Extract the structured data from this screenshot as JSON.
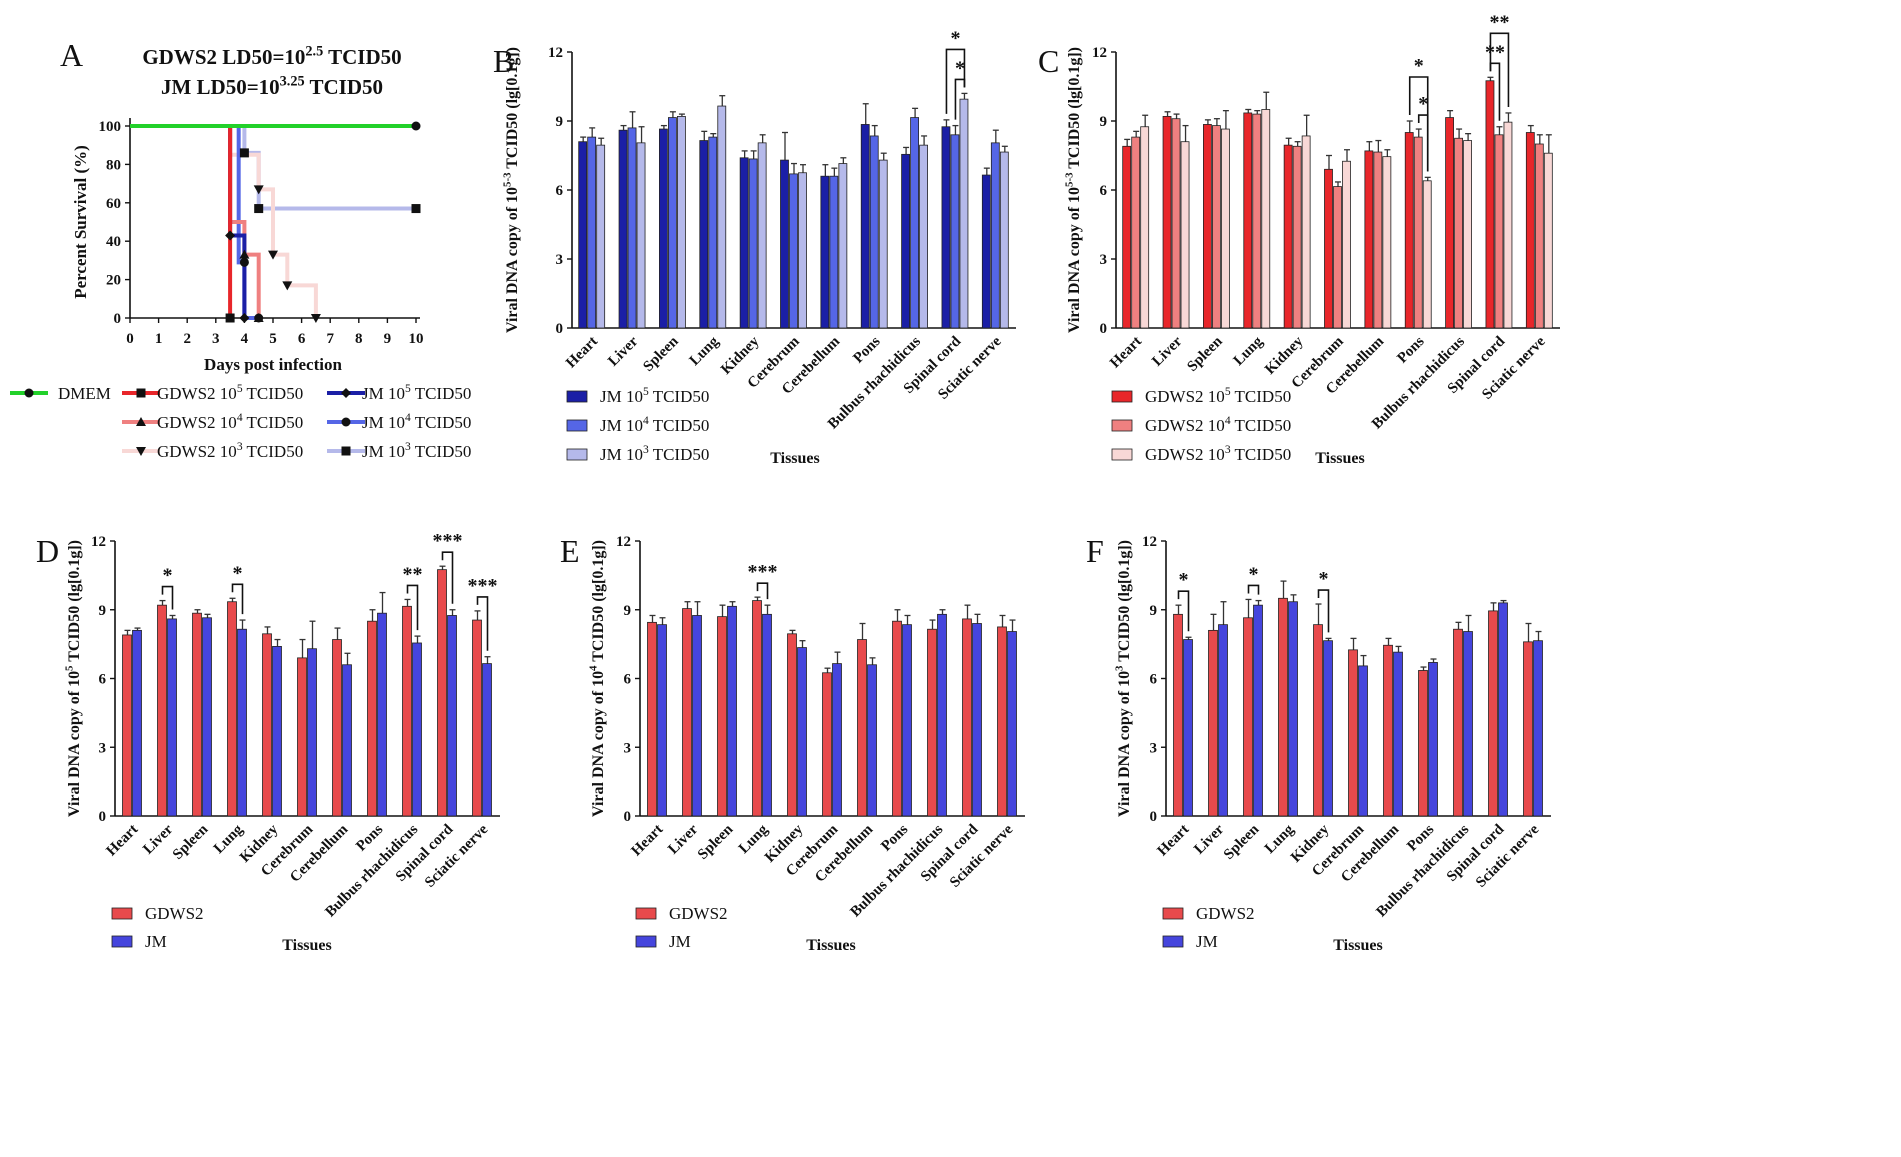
{
  "colors": {
    "dmem": "#22d12a",
    "gdws2_hi": "#e8262a",
    "gdws2_mid": "#ef8080",
    "gdws2_lo": "#f8d8d6",
    "jm_hi": "#1b1fa6",
    "jm_mid": "#5566e6",
    "jm_lo": "#b5b9ea",
    "gdws2": "#e84a4c",
    "jm": "#4545dd"
  },
  "tissues": [
    "Heart",
    "Liver",
    "Spleen",
    "Lung",
    "Kidney",
    "Cerebrum",
    "Cerebellum",
    "Pons",
    "Bulbus rhachidicus",
    "Spinal cord",
    "Sciatic nerve"
  ],
  "tissues_label": "Tissues",
  "chart_data": [
    {
      "id": "A",
      "type": "line",
      "panel_letter": "A",
      "title_line1_base": "GDWS2 LD50=10",
      "title_line1_exp": "2.5",
      "title_line1_tail": " TCID50",
      "title_line2_base": "JM LD50=10",
      "title_line2_exp": "3.25",
      "title_line2_tail": " TCID50",
      "xlabel": "Days post infection",
      "ylabel": "Percent Survival (%)",
      "xlim": [
        0,
        10
      ],
      "ylim": [
        0,
        100
      ],
      "xticks": [
        0,
        1,
        2,
        3,
        4,
        5,
        6,
        7,
        8,
        9,
        10
      ],
      "yticks": [
        0,
        20,
        40,
        60,
        80,
        100
      ],
      "series": [
        {
          "name": "DMEM",
          "label_base": "DMEM",
          "label_exp": "",
          "label_tail": "",
          "color_key": "dmem",
          "marker": "circle",
          "x": [
            0,
            10
          ],
          "y": [
            100,
            100
          ],
          "points": [
            [
              10,
              100
            ]
          ]
        },
        {
          "name": "GDWS2 10^5 TCID50",
          "label_base": "GDWS2 10",
          "label_exp": "5",
          "label_tail": " TCID50",
          "color_key": "gdws2_hi",
          "marker": "square",
          "x": [
            0,
            3.5,
            3.5
          ],
          "y": [
            100,
            100,
            0
          ],
          "points": [
            [
              3.5,
              0
            ]
          ]
        },
        {
          "name": "GDWS2 10^4 TCID50",
          "label_base": "GDWS2 10",
          "label_exp": "4",
          "label_tail": " TCID50",
          "color_key": "gdws2_mid",
          "marker": "triangle",
          "x": [
            0,
            3.5,
            3.5,
            4,
            4,
            4.5,
            4.5
          ],
          "y": [
            100,
            100,
            50,
            50,
            33,
            33,
            0
          ],
          "points": [
            [
              4,
              33
            ],
            [
              4.5,
              0
            ]
          ]
        },
        {
          "name": "GDWS2 10^3 TCID50",
          "label_base": "GDWS2 10",
          "label_exp": "3",
          "label_tail": " TCID50",
          "color_key": "gdws2_lo",
          "marker": "tri-down",
          "x": [
            0,
            3.5,
            3.5,
            4.5,
            4.5,
            5,
            5,
            5.5,
            5.5,
            6.5,
            6.5
          ],
          "y": [
            100,
            100,
            85,
            85,
            67,
            67,
            33,
            33,
            17,
            17,
            0
          ],
          "points": [
            [
              4.5,
              67
            ],
            [
              5,
              33
            ],
            [
              5.5,
              17
            ],
            [
              6.5,
              0
            ]
          ]
        },
        {
          "name": "JM 10^5 TCID50",
          "label_base": "JM 10",
          "label_exp": "5",
          "label_tail": " TCID50",
          "color_key": "jm_hi",
          "marker": "diamond",
          "x": [
            0,
            3.5,
            3.5,
            4,
            4
          ],
          "y": [
            100,
            100,
            43,
            43,
            0
          ],
          "points": [
            [
              3.5,
              43
            ],
            [
              4,
              0
            ]
          ]
        },
        {
          "name": "JM 10^4 TCID50",
          "label_base": "JM 10",
          "label_exp": "4",
          "label_tail": " TCID50",
          "color_key": "jm_mid",
          "marker": "circle",
          "x": [
            0,
            3.8,
            3.8,
            4,
            4,
            4.5
          ],
          "y": [
            100,
            100,
            29,
            29,
            0,
            0
          ],
          "points": [
            [
              4,
              29
            ],
            [
              4.5,
              0
            ]
          ]
        },
        {
          "name": "JM 10^3 TCID50",
          "label_base": "JM 10",
          "label_exp": "3",
          "label_tail": " TCID50",
          "color_key": "jm_lo",
          "marker": "square",
          "x": [
            0,
            4,
            4,
            4.5,
            4.5,
            10
          ],
          "y": [
            100,
            100,
            86,
            86,
            57,
            57
          ],
          "points": [
            [
              4,
              86
            ],
            [
              4.5,
              57
            ],
            [
              10,
              57
            ]
          ]
        }
      ]
    },
    {
      "id": "B",
      "type": "bar",
      "panel_letter": "B",
      "ylabel_base": "Viral DNA copy of 10",
      "ylabel_exp": "5-3",
      "ylabel_tail": " TCID50 (lg[0.1g])",
      "ylim": [
        0,
        12
      ],
      "yticks": [
        0,
        3,
        6,
        9,
        12
      ],
      "series": [
        {
          "label_base": "JM 10",
          "label_exp": "5",
          "label_tail": " TCID50",
          "color_key": "jm_hi",
          "values": [
            8.1,
            8.6,
            8.65,
            8.15,
            7.4,
            7.3,
            6.6,
            8.85,
            7.55,
            8.75,
            6.65
          ],
          "errors": [
            0.2,
            0.2,
            0.15,
            0.4,
            0.3,
            1.2,
            0.5,
            0.9,
            0.3,
            0.3,
            0.3
          ]
        },
        {
          "label_base": "JM 10",
          "label_exp": "4",
          "label_tail": " TCID50",
          "color_key": "jm_mid",
          "values": [
            8.3,
            8.7,
            9.15,
            8.3,
            7.35,
            6.7,
            6.6,
            8.35,
            9.15,
            8.4,
            8.05
          ],
          "errors": [
            0.4,
            0.7,
            0.25,
            0.15,
            0.35,
            0.45,
            0.35,
            0.45,
            0.4,
            0.4,
            0.55
          ]
        },
        {
          "label_base": "JM 10",
          "label_exp": "3",
          "label_tail": " TCID50",
          "color_key": "jm_lo",
          "values": [
            7.95,
            8.05,
            9.2,
            9.65,
            8.05,
            6.75,
            7.15,
            7.3,
            7.95,
            9.95,
            7.65
          ],
          "errors": [
            0.3,
            0.7,
            0.1,
            0.45,
            0.35,
            0.35,
            0.25,
            0.3,
            0.4,
            0.25,
            0.25
          ]
        }
      ],
      "sig": [
        {
          "tissue": 9,
          "from_series": 0,
          "to_series": 2,
          "label": "*",
          "level": 1
        },
        {
          "tissue": 9,
          "from_series": 1,
          "to_series": 2,
          "label": "*",
          "level": 0
        }
      ]
    },
    {
      "id": "C",
      "type": "bar",
      "panel_letter": "C",
      "ylabel_base": "Viral DNA copy of 10",
      "ylabel_exp": "5-3",
      "ylabel_tail": " TCID50 (lg[0.1g])",
      "ylim": [
        0,
        12
      ],
      "yticks": [
        0,
        3,
        6,
        9,
        12
      ],
      "series": [
        {
          "label_base": "GDWS2 10",
          "label_exp": "5",
          "label_tail": " TCID50",
          "color_key": "gdws2_hi",
          "values": [
            7.9,
            9.2,
            8.85,
            9.35,
            7.95,
            6.9,
            7.7,
            8.5,
            9.15,
            10.75,
            8.5
          ],
          "errors": [
            0.3,
            0.2,
            0.2,
            0.15,
            0.3,
            0.6,
            0.4,
            0.5,
            0.3,
            0.15,
            0.3
          ]
        },
        {
          "label_base": "GDWS2 10",
          "label_exp": "4",
          "label_tail": " TCID50",
          "color_key": "gdws2_mid",
          "values": [
            8.3,
            9.1,
            8.8,
            9.3,
            7.9,
            6.15,
            7.65,
            8.3,
            8.25,
            8.4,
            8.0
          ],
          "errors": [
            0.25,
            0.2,
            0.3,
            0.15,
            0.2,
            0.2,
            0.5,
            0.35,
            0.4,
            0.35,
            0.4
          ]
        },
        {
          "label_base": "GDWS2 10",
          "label_exp": "3",
          "label_tail": " TCID50",
          "color_key": "gdws2_lo",
          "values": [
            8.75,
            8.1,
            8.65,
            9.5,
            8.35,
            7.25,
            7.45,
            6.4,
            8.15,
            8.95,
            7.6
          ],
          "errors": [
            0.5,
            0.7,
            0.8,
            0.75,
            0.9,
            0.5,
            0.3,
            0.15,
            0.3,
            0.4,
            0.8
          ]
        }
      ],
      "sig": [
        {
          "tissue": 7,
          "from_series": 0,
          "to_series": 2,
          "label": "*",
          "level": 1
        },
        {
          "tissue": 7,
          "from_series": 1,
          "to_series": 2,
          "label": "*",
          "level": 0
        },
        {
          "tissue": 9,
          "from_series": 0,
          "to_series": 2,
          "label": "**",
          "level": 1
        },
        {
          "tissue": 9,
          "from_series": 0,
          "to_series": 1,
          "label": "**",
          "level": 0
        }
      ]
    },
    {
      "id": "D",
      "type": "bar",
      "panel_letter": "D",
      "ylabel_base": "Viral DNA copy of 10",
      "ylabel_exp": "5",
      "ylabel_tail": " TCID50 (lg[0.1g])",
      "ylim": [
        0,
        12
      ],
      "yticks": [
        0,
        3,
        6,
        9,
        12
      ],
      "series": [
        {
          "label_base": "GDWS2",
          "label_exp": "",
          "label_tail": "",
          "color_key": "gdws2",
          "values": [
            7.9,
            9.2,
            8.85,
            9.35,
            7.95,
            6.9,
            7.7,
            8.5,
            9.15,
            10.75,
            8.55
          ],
          "errors": [
            0.2,
            0.2,
            0.15,
            0.15,
            0.3,
            0.8,
            0.5,
            0.5,
            0.3,
            0.15,
            0.4
          ]
        },
        {
          "label_base": "JM",
          "label_exp": "",
          "label_tail": "",
          "color_key": "jm",
          "values": [
            8.1,
            8.6,
            8.65,
            8.15,
            7.4,
            7.3,
            6.6,
            8.85,
            7.55,
            8.75,
            6.65
          ],
          "errors": [
            0.1,
            0.15,
            0.15,
            0.4,
            0.3,
            1.2,
            0.5,
            0.9,
            0.3,
            0.25,
            0.3
          ]
        }
      ],
      "sig": [
        {
          "tissue": 1,
          "from_series": 0,
          "to_series": 1,
          "label": "*",
          "level": 0
        },
        {
          "tissue": 3,
          "from_series": 0,
          "to_series": 1,
          "label": "*",
          "level": 0
        },
        {
          "tissue": 8,
          "from_series": 0,
          "to_series": 1,
          "label": "**",
          "level": 0
        },
        {
          "tissue": 9,
          "from_series": 0,
          "to_series": 1,
          "label": "***",
          "level": 0
        },
        {
          "tissue": 10,
          "from_series": 0,
          "to_series": 1,
          "label": "***",
          "level": 0
        }
      ]
    },
    {
      "id": "E",
      "type": "bar",
      "panel_letter": "E",
      "ylabel_base": "Viral DNA copy of 10",
      "ylabel_exp": "4",
      "ylabel_tail": " TCID50 (lg[0.1g])",
      "ylim": [
        0,
        12
      ],
      "yticks": [
        0,
        3,
        6,
        9,
        12
      ],
      "series": [
        {
          "label_base": "GDWS2",
          "label_exp": "",
          "label_tail": "",
          "color_key": "gdws2",
          "values": [
            8.45,
            9.05,
            8.7,
            9.4,
            7.95,
            6.25,
            7.7,
            8.5,
            8.15,
            8.6,
            8.25
          ],
          "errors": [
            0.3,
            0.3,
            0.5,
            0.15,
            0.15,
            0.2,
            0.7,
            0.5,
            0.4,
            0.6,
            0.5
          ]
        },
        {
          "label_base": "JM",
          "label_exp": "",
          "label_tail": "",
          "color_key": "jm",
          "values": [
            8.35,
            8.75,
            9.15,
            8.8,
            7.35,
            6.65,
            6.6,
            8.35,
            8.8,
            8.4,
            8.05
          ],
          "errors": [
            0.3,
            0.6,
            0.2,
            0.4,
            0.3,
            0.5,
            0.3,
            0.4,
            0.2,
            0.4,
            0.5
          ]
        }
      ],
      "sig": [
        {
          "tissue": 3,
          "from_series": 0,
          "to_series": 1,
          "label": "***",
          "level": 0
        }
      ]
    },
    {
      "id": "F",
      "type": "bar",
      "panel_letter": "F",
      "ylabel_base": "Viral DNA copy of 10",
      "ylabel_exp": "3",
      "ylabel_tail": " TCID50 (lg[0.1g])",
      "ylim": [
        0,
        12
      ],
      "yticks": [
        0,
        3,
        6,
        9,
        12
      ],
      "series": [
        {
          "label_base": "GDWS2",
          "label_exp": "",
          "label_tail": "",
          "color_key": "gdws2",
          "values": [
            8.8,
            8.1,
            8.65,
            9.5,
            8.35,
            7.25,
            7.45,
            6.35,
            8.15,
            8.95,
            7.6
          ],
          "errors": [
            0.4,
            0.7,
            0.8,
            0.75,
            0.9,
            0.5,
            0.3,
            0.15,
            0.3,
            0.35,
            0.8
          ]
        },
        {
          "label_base": "JM",
          "label_exp": "",
          "label_tail": "",
          "color_key": "jm",
          "values": [
            7.7,
            8.35,
            9.2,
            9.35,
            7.65,
            6.55,
            7.15,
            6.7,
            8.05,
            9.3,
            7.65
          ],
          "errors": [
            0.1,
            1.0,
            0.2,
            0.3,
            0.1,
            0.45,
            0.25,
            0.15,
            0.7,
            0.1,
            0.4
          ]
        }
      ],
      "sig": [
        {
          "tissue": 0,
          "from_series": 0,
          "to_series": 1,
          "label": "*",
          "level": 0
        },
        {
          "tissue": 2,
          "from_series": 0,
          "to_series": 1,
          "label": "*",
          "level": 0
        },
        {
          "tissue": 4,
          "from_series": 0,
          "to_series": 1,
          "label": "*",
          "level": 0
        }
      ]
    }
  ]
}
